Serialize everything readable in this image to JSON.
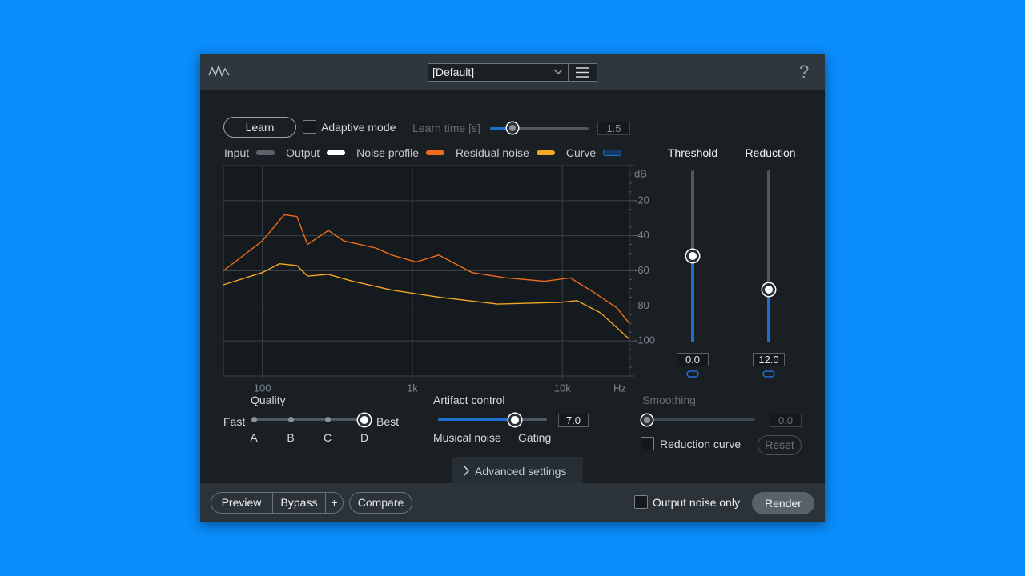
{
  "header": {
    "preset": "[Default]",
    "help": "?"
  },
  "controls": {
    "learn": "Learn",
    "adaptive_mode": "Adaptive mode",
    "learn_time_label": "Learn time [s]",
    "learn_time": "1.5"
  },
  "legend": [
    {
      "name": "Input",
      "color": "#5b646c"
    },
    {
      "name": "Output",
      "color": "#ffffff"
    },
    {
      "name": "Noise profile",
      "color": "#f26b1d"
    },
    {
      "name": "Residual noise",
      "color": "#f5a623"
    },
    {
      "name": "Curve",
      "color": "#1f6fd1"
    }
  ],
  "spectrum": {
    "type": "line",
    "y_unit": "dB",
    "x_unit": "Hz",
    "log_x": true,
    "xlim": [
      55,
      28000
    ],
    "xticks": [
      {
        "value": 100,
        "label": "100"
      },
      {
        "value": 1000,
        "label": "1k"
      },
      {
        "value": 10000,
        "label": "10k"
      }
    ],
    "ylim": [
      -120,
      0
    ],
    "yticks": [
      -20,
      -40,
      -60,
      -80,
      -100
    ],
    "series": [
      {
        "x": [
          55,
          100,
          140,
          170,
          200,
          275,
          350,
          570,
          730,
          1060,
          1500,
          2500,
          4200,
          7600,
          11300,
          16000,
          23000,
          28000
        ],
        "values": [
          -60,
          -43,
          -28,
          -29,
          -45,
          -37,
          -43,
          -47,
          -51,
          -55,
          -51,
          -61,
          -64,
          -66,
          -64,
          -72,
          -81,
          -90
        ]
      },
      {
        "x": [
          55,
          100,
          130,
          170,
          200,
          275,
          400,
          730,
          1500,
          3700,
          9700,
          12500,
          18000,
          28000
        ],
        "values": [
          -68,
          -61,
          -56,
          -57,
          -63,
          -62,
          -66,
          -71,
          -75,
          -79,
          -78,
          -77,
          -84,
          -99
        ]
      }
    ]
  },
  "threshold": {
    "label": "Threshold",
    "value": "0.0"
  },
  "reduction": {
    "label": "Reduction",
    "value": "12.0"
  },
  "quality": {
    "label": "Quality",
    "low": "Fast",
    "high": "Best",
    "options": [
      "A",
      "B",
      "C",
      "D"
    ]
  },
  "artifact": {
    "label": "Artifact control",
    "value": "7.0",
    "low": "Musical noise",
    "high": "Gating"
  },
  "smoothing": {
    "label": "Smoothing",
    "value": "0.0",
    "reduction_curve": "Reduction curve",
    "reset": "Reset"
  },
  "advanced": "Advanced settings",
  "footer": {
    "preview": "Preview",
    "bypass": "Bypass",
    "plus": "+",
    "compare": "Compare",
    "output_noise_only": "Output noise only",
    "render": "Render"
  }
}
